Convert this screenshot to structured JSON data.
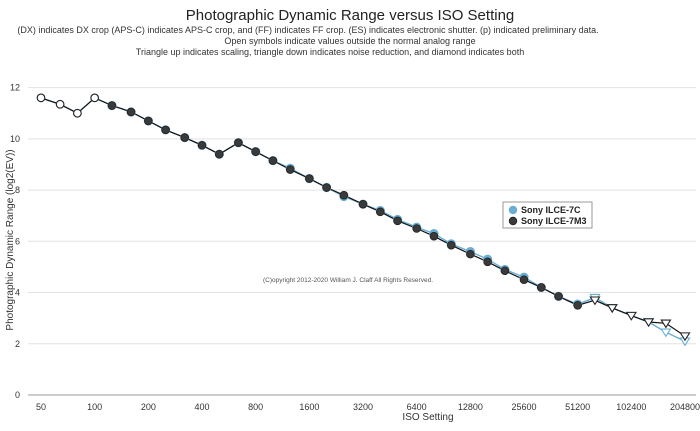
{
  "chart_data": {
    "type": "line",
    "title": "Photographic Dynamic Range versus ISO Setting",
    "subtitle_lines": [
      "(DX) indicates DX crop (APS-C) indicates APS-C crop, and (FF) indicates FF crop. (ES) indicates electronic shutter. (p) indicated preliminary data.",
      "Open symbols indicate values outside the normal analog range",
      "Triangle up indicates scaling, triangle down indicates noise reduction, and diamond indicates both"
    ],
    "xlabel": "ISO Setting",
    "ylabel": "Photographic Dynamic Range (log2(EV))",
    "x_scale": "log2",
    "x_ticks": [
      50,
      100,
      200,
      400,
      800,
      1600,
      3200,
      6400,
      12800,
      25600,
      51200,
      102400,
      204800
    ],
    "xlim": [
      50,
      204800
    ],
    "y_ticks": [
      0,
      2,
      4,
      6,
      8,
      10,
      12
    ],
    "ylim": [
      0,
      13
    ],
    "grid": true,
    "legend_position": "right",
    "copyright": "(C)opyright 2012-2020 William J. Claff All Rights Reserved.",
    "series": [
      {
        "name": "Sony ILCE-7C",
        "color": "#6aaed6",
        "line_color": "#6aaed6",
        "x": [
          50,
          64,
          80,
          100,
          125,
          160,
          200,
          250,
          320,
          400,
          500,
          640,
          800,
          1000,
          1250,
          1600,
          2000,
          2500,
          3200,
          4000,
          5000,
          6400,
          8000,
          10000,
          12800,
          16000,
          20000,
          25600,
          32000,
          40000,
          51200,
          64000,
          80000,
          102400,
          128000,
          160000,
          204800
        ],
        "y": [
          11.6,
          11.35,
          11.0,
          11.6,
          11.3,
          11.05,
          10.7,
          10.35,
          10.05,
          9.75,
          9.4,
          9.85,
          9.5,
          9.15,
          8.85,
          8.45,
          8.1,
          7.75,
          7.45,
          7.2,
          6.85,
          6.55,
          6.3,
          5.9,
          5.6,
          5.3,
          4.9,
          4.6,
          4.2,
          3.85,
          3.55,
          3.8,
          3.4,
          3.1,
          2.85,
          2.45,
          2.1
        ],
        "marker_types": [
          "circle-open",
          "circle-open",
          "circle-open",
          "circle-open",
          "circle",
          "circle",
          "circle",
          "circle",
          "circle",
          "circle",
          "circle",
          "circle",
          "circle",
          "circle",
          "circle",
          "circle",
          "circle",
          "circle",
          "circle",
          "circle",
          "circle",
          "circle",
          "circle",
          "circle",
          "circle",
          "circle",
          "circle",
          "circle",
          "circle",
          "circle",
          "circle",
          "tri-down",
          "tri-down",
          "tri-down",
          "tri-down",
          "tri-down",
          "tri-down"
        ]
      },
      {
        "name": "Sony ILCE-7M3",
        "color": "#3a3a3a",
        "line_color": "#111111",
        "x": [
          50,
          64,
          80,
          100,
          125,
          160,
          200,
          250,
          320,
          400,
          500,
          640,
          800,
          1000,
          1250,
          1600,
          2000,
          2500,
          3200,
          4000,
          5000,
          6400,
          8000,
          10000,
          12800,
          16000,
          20000,
          25600,
          32000,
          40000,
          51200,
          64000,
          80000,
          102400,
          128000,
          160000,
          204800
        ],
        "y": [
          11.6,
          11.35,
          11.0,
          11.6,
          11.3,
          11.05,
          10.7,
          10.35,
          10.05,
          9.75,
          9.4,
          9.85,
          9.5,
          9.15,
          8.8,
          8.45,
          8.1,
          7.8,
          7.45,
          7.15,
          6.8,
          6.5,
          6.2,
          5.85,
          5.5,
          5.2,
          4.85,
          4.5,
          4.2,
          3.85,
          3.5,
          3.7,
          3.4,
          3.1,
          2.85,
          2.8,
          2.3
        ],
        "marker_types": [
          "circle-open",
          "circle-open",
          "circle-open",
          "circle-open",
          "circle",
          "circle",
          "circle",
          "circle",
          "circle",
          "circle",
          "circle",
          "circle",
          "circle",
          "circle",
          "circle",
          "circle",
          "circle",
          "circle",
          "circle",
          "circle",
          "circle",
          "circle",
          "circle",
          "circle",
          "circle",
          "circle",
          "circle",
          "circle",
          "circle",
          "circle",
          "circle",
          "tri-down",
          "tri-down",
          "tri-down",
          "tri-down",
          "tri-down",
          "tri-down"
        ]
      }
    ]
  }
}
